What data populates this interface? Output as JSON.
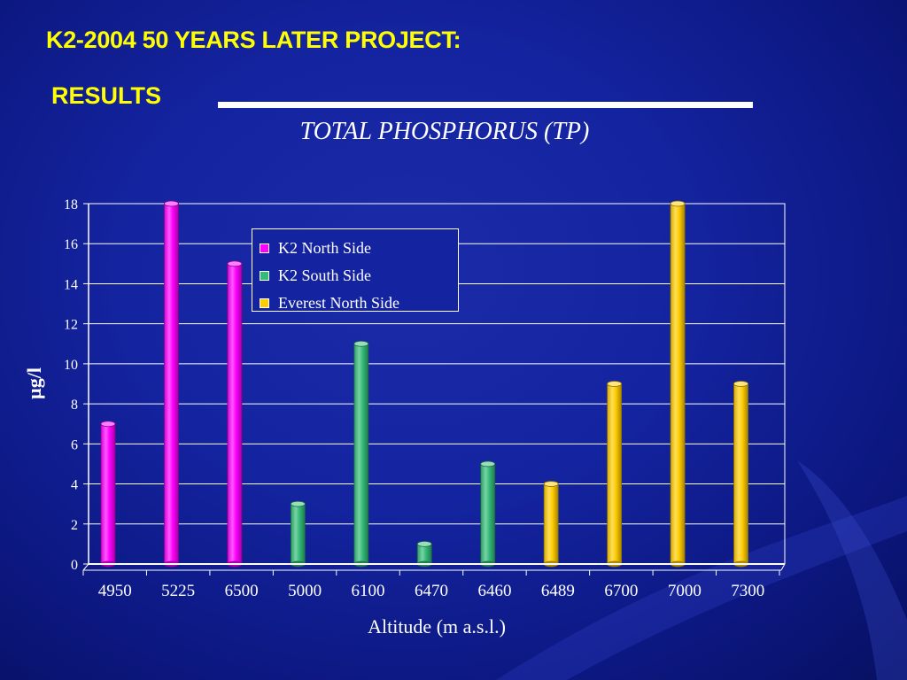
{
  "slide": {
    "title": "K2-2004 50 YEARS LATER PROJECT:",
    "subtitle": "RESULTS"
  },
  "colors": {
    "k2_north": "#ff00ff",
    "k2_south": "#33bb77",
    "everest_north": "#ffcc00",
    "heading": "#ffff00",
    "text": "#ffffff"
  },
  "chart_data": {
    "type": "bar",
    "title": "TOTAL PHOSPHORUS (TP)",
    "xlabel": "Altitude (m a.s.l.)",
    "ylabel": "µg/l",
    "ylim": [
      0,
      18
    ],
    "y_ticks": [
      "0",
      "2",
      "4",
      "6",
      "8",
      "10",
      "12",
      "14",
      "16",
      "18"
    ],
    "grid": true,
    "legend_placement": "top-center",
    "categories": [
      "4950",
      "5225",
      "6500",
      "5000",
      "6100",
      "6470",
      "6460",
      "6489",
      "6700",
      "7000",
      "7300"
    ],
    "series": [
      {
        "name": "K2 North Side",
        "color": "#ff00ff",
        "values": [
          7,
          18,
          15,
          null,
          null,
          null,
          null,
          null,
          null,
          null,
          null
        ]
      },
      {
        "name": "K2 South Side",
        "color": "#33bb77",
        "values": [
          null,
          null,
          null,
          3,
          11,
          1,
          5,
          null,
          null,
          null,
          null
        ]
      },
      {
        "name": "Everest North Side",
        "color": "#ffcc00",
        "values": [
          null,
          null,
          null,
          null,
          null,
          null,
          null,
          4,
          9,
          18,
          9
        ]
      }
    ]
  }
}
